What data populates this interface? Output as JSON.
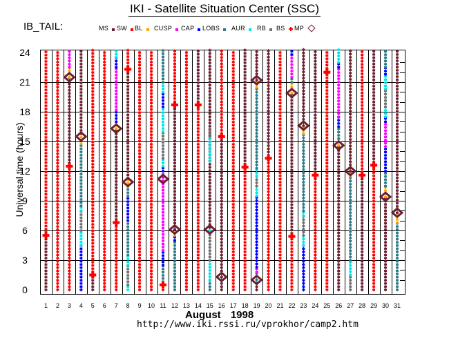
{
  "header": {
    "title": "IKI - Satellite Situation Center (SSC)",
    "satellite": "IB_TAIL:"
  },
  "footer": {
    "month_label": "August   1998",
    "url": "http://www.iki.rssi.ru/vprokhor/camp2.htm"
  },
  "chart_data": {
    "type": "scatter",
    "title": "IKI - Satellite Situation Center (SSC)",
    "satellite": "IB_TAIL",
    "xlabel": "August 1998",
    "ylabel": "Universal time (hours)",
    "x_categories": [
      "1",
      "2",
      "3",
      "4",
      "5",
      "6",
      "7",
      "8",
      "9",
      "10",
      "11",
      "12",
      "13",
      "14",
      "15",
      "16",
      "17",
      "18",
      "19",
      "20",
      "21",
      "22",
      "23",
      "24",
      "25",
      "26",
      "27",
      "28",
      "29",
      "30",
      "31"
    ],
    "yticks": [
      0,
      3,
      6,
      9,
      12,
      15,
      18,
      21,
      24
    ],
    "ylim": [
      0,
      24.5
    ],
    "grid": true,
    "legend": [
      {
        "key": "MS",
        "label": "MS",
        "color": "#6b2030",
        "marker": "dot"
      },
      {
        "key": "SW",
        "label": "SW",
        "color": "#ff0000",
        "marker": "dot"
      },
      {
        "key": "BL",
        "label": "BL",
        "color": "#ffa500",
        "marker": "dot"
      },
      {
        "key": "CUSP",
        "label": "CUSP",
        "color": "#ff00ff",
        "marker": "dot"
      },
      {
        "key": "CAP",
        "label": "CAP",
        "color": "#0000ff",
        "marker": "dot"
      },
      {
        "key": "LOBS",
        "label": "LOBS",
        "color": "#2e7b86",
        "marker": "dot"
      },
      {
        "key": "AUR",
        "label": "AUR",
        "color": "#00e5e5",
        "marker": "dot"
      },
      {
        "key": "RB",
        "label": "RB",
        "color": "#707070",
        "marker": "dot"
      },
      {
        "key": "BS",
        "label": "BS",
        "color": "#ff0000",
        "marker": "cross"
      },
      {
        "key": "MP",
        "label": "MP",
        "color": "#6b2030",
        "marker": "diamond"
      }
    ],
    "legend_order_note": "legend pairs labels with the swatch to their right: MS, SW, BL, CUSP, CAP, LOBS, AUR, RB, BS, MP",
    "days": [
      {
        "day": 1,
        "segments": [
          [
            "MS",
            0,
            5.5
          ],
          [
            "SW",
            5.5,
            24.3
          ]
        ],
        "bs": [
          5.5
        ],
        "mp": []
      },
      {
        "day": 2,
        "segments": [
          [
            "SW",
            0,
            24.3
          ]
        ],
        "bs": [],
        "mp": []
      },
      {
        "day": 3,
        "segments": [
          [
            "SW",
            0,
            12.5
          ],
          [
            "MS",
            12.5,
            21.5
          ],
          [
            "BL",
            21.5,
            22.5
          ],
          [
            "CUSP",
            22.5,
            24.3
          ]
        ],
        "bs": [
          12.5
        ],
        "mp": [
          21.5
        ]
      },
      {
        "day": 4,
        "segments": [
          [
            "CUSP",
            0,
            0.5
          ],
          [
            "CAP",
            0,
            4.5
          ],
          [
            "AUR",
            4.5,
            6.0
          ],
          [
            "RB",
            6.0,
            8.0
          ],
          [
            "AUR",
            8.0,
            8.5
          ],
          [
            "LOBS",
            8.5,
            14.8
          ],
          [
            "BL",
            14.8,
            15.8
          ],
          [
            "MS",
            15.8,
            24.3
          ]
        ],
        "bs": [],
        "mp": [
          15.5
        ]
      },
      {
        "day": 5,
        "segments": [
          [
            "MS",
            0,
            1.5
          ],
          [
            "SW",
            1.5,
            24.3
          ]
        ],
        "bs": [
          1.5
        ],
        "mp": []
      },
      {
        "day": 6,
        "segments": [
          [
            "SW",
            0,
            24.3
          ]
        ],
        "bs": [],
        "mp": []
      },
      {
        "day": 7,
        "segments": [
          [
            "SW",
            0,
            6.8
          ],
          [
            "MS",
            6.8,
            16.3
          ],
          [
            "BL",
            16.3,
            17.0
          ],
          [
            "CAP",
            17.0,
            18.2
          ],
          [
            "CUSP",
            18.2,
            22.5
          ],
          [
            "CAP",
            22.5,
            23.5
          ],
          [
            "AUR",
            23.5,
            24.3
          ]
        ],
        "bs": [
          6.8
        ],
        "mp": [
          16.3
        ]
      },
      {
        "day": 8,
        "segments": [
          [
            "AUR",
            0,
            0.5
          ],
          [
            "RB",
            0.5,
            2.5
          ],
          [
            "AUR",
            2.5,
            3.5
          ],
          [
            "LOBS",
            3.5,
            7.0
          ],
          [
            "CAP",
            7.0,
            9.5
          ],
          [
            "LOBS",
            9.5,
            10.5
          ],
          [
            "BL",
            10.5,
            11.3
          ],
          [
            "MS",
            11.3,
            22.3
          ],
          [
            "SW",
            22.3,
            24.3
          ]
        ],
        "bs": [
          22.3
        ],
        "mp": [
          10.9
        ]
      },
      {
        "day": 9,
        "segments": [
          [
            "SW",
            0,
            24.3
          ]
        ],
        "bs": [],
        "mp": []
      },
      {
        "day": 10,
        "segments": [
          [
            "SW",
            0,
            24.3
          ]
        ],
        "bs": [],
        "mp": []
      },
      {
        "day": 11,
        "segments": [
          [
            "SW",
            0,
            0.5
          ],
          [
            "LOBS",
            0.5,
            2.5
          ],
          [
            "CAP",
            2.5,
            4.0
          ],
          [
            "CUSP",
            4.0,
            12.0
          ],
          [
            "CAP",
            12.0,
            12.5
          ],
          [
            "AUR",
            12.5,
            13.3
          ],
          [
            "RB",
            13.3,
            16.0
          ],
          [
            "AUR",
            16.0,
            18.5
          ],
          [
            "CAP",
            18.5,
            20.0
          ],
          [
            "AUR",
            20.0,
            21.0
          ],
          [
            "LOBS",
            21.0,
            24.3
          ]
        ],
        "bs": [
          0.5
        ],
        "mp": [
          11.2
        ]
      },
      {
        "day": 12,
        "segments": [
          [
            "LOBS",
            0,
            5.0
          ],
          [
            "CAP",
            5.0,
            5.5
          ],
          [
            "BL",
            5.5,
            6.1
          ],
          [
            "MS",
            6.1,
            18.7
          ],
          [
            "SW",
            18.7,
            24.3
          ]
        ],
        "bs": [
          18.7
        ],
        "mp": [
          6.1
        ]
      },
      {
        "day": 13,
        "segments": [
          [
            "SW",
            0,
            24.3
          ]
        ],
        "bs": [],
        "mp": []
      },
      {
        "day": 14,
        "segments": [
          [
            "SW",
            0,
            18.7
          ],
          [
            "MS",
            18.7,
            24.3
          ]
        ],
        "bs": [
          18.7
        ],
        "mp": []
      },
      {
        "day": 15,
        "segments": [
          [
            "LOBS",
            0,
            1.0
          ],
          [
            "AUR",
            1.0,
            3.0
          ],
          [
            "RB",
            3.0,
            6.0
          ],
          [
            "AUR",
            6.0,
            6.3
          ],
          [
            "MS",
            6.3,
            24.3
          ],
          [
            "AUR",
            13.0,
            15.5
          ],
          [
            "RB",
            15.5,
            16.3
          ]
        ],
        "bs": [],
        "mp": [
          6.1
        ]
      },
      {
        "day": 16,
        "segments": [
          [
            "MS",
            0,
            15.5
          ],
          [
            "SW",
            15.5,
            24.3
          ]
        ],
        "bs": [
          15.5
        ],
        "mp": [
          1.3
        ]
      },
      {
        "day": 17,
        "segments": [
          [
            "SW",
            0,
            24.3
          ]
        ],
        "bs": [],
        "mp": []
      },
      {
        "day": 18,
        "segments": [
          [
            "SW",
            0,
            12.4
          ],
          [
            "MS",
            12.4,
            24.3
          ]
        ],
        "bs": [
          12.4
        ],
        "mp": []
      },
      {
        "day": 19,
        "segments": [
          [
            "MS",
            0,
            0.7
          ],
          [
            "LOBS",
            0.7,
            1.8
          ],
          [
            "CUSP",
            1.8,
            2.3
          ],
          [
            "CAP",
            2.3,
            9.5
          ],
          [
            "AUR",
            9.5,
            10.5
          ],
          [
            "RB",
            10.5,
            11.5
          ],
          [
            "AUR",
            11.5,
            12.3
          ],
          [
            "LOBS",
            12.3,
            20.5
          ],
          [
            "BL",
            20.5,
            21.2
          ],
          [
            "MS",
            21.2,
            24.3
          ]
        ],
        "bs": [],
        "mp": [
          1.0,
          21.2
        ]
      },
      {
        "day": 20,
        "segments": [
          [
            "SW",
            0,
            13.3
          ],
          [
            "MS",
            13.3,
            24.3
          ]
        ],
        "bs": [
          13.3
        ],
        "mp": []
      },
      {
        "day": 21,
        "segments": [
          [
            "SW",
            0,
            24.3
          ]
        ],
        "bs": [],
        "mp": []
      },
      {
        "day": 22,
        "segments": [
          [
            "SW",
            0,
            5.4
          ],
          [
            "MS",
            5.4,
            19.9
          ],
          [
            "BL",
            19.9,
            21.0
          ],
          [
            "LOBS",
            21.0,
            21.5
          ],
          [
            "CUSP",
            21.5,
            23.8
          ],
          [
            "CAP",
            23.8,
            24.3
          ]
        ],
        "bs": [
          5.4
        ],
        "mp": [
          19.9
        ]
      },
      {
        "day": 23,
        "segments": [
          [
            "CAP",
            0,
            4.5
          ],
          [
            "AUR",
            4.5,
            5.5
          ],
          [
            "RB",
            5.5,
            7.5
          ],
          [
            "AUR",
            7.5,
            8.0
          ],
          [
            "LOBS",
            8.0,
            15.8
          ],
          [
            "BL",
            15.8,
            16.6
          ],
          [
            "MS",
            16.6,
            24.3
          ]
        ],
        "bs": [],
        "mp": [
          16.6
        ]
      },
      {
        "day": 24,
        "segments": [
          [
            "SW",
            0,
            11.6
          ],
          [
            "MS",
            11.6,
            24.3
          ]
        ],
        "bs": [
          11.6
        ],
        "mp": []
      },
      {
        "day": 25,
        "segments": [
          [
            "SW",
            0,
            24.3
          ]
        ],
        "bs": [
          22.0
        ],
        "mp": []
      },
      {
        "day": 26,
        "segments": [
          [
            "MS",
            0,
            14.6
          ],
          [
            "BL",
            14.6,
            15.3
          ],
          [
            "LOBS",
            15.3,
            16.5
          ],
          [
            "CAP",
            16.5,
            17.5
          ],
          [
            "CUSP",
            17.5,
            22.5
          ],
          [
            "CAP",
            22.5,
            23.0
          ],
          [
            "AUR",
            23.0,
            24.3
          ]
        ],
        "bs": [],
        "mp": [
          14.6
        ]
      },
      {
        "day": 27,
        "segments": [
          [
            "RB",
            0,
            1.5
          ],
          [
            "AUR",
            1.5,
            3.0
          ],
          [
            "LOBS",
            3.0,
            11.5
          ],
          [
            "BL",
            11.5,
            12.0
          ],
          [
            "MS",
            12.0,
            24.3
          ]
        ],
        "bs": [],
        "mp": [
          12.0
        ]
      },
      {
        "day": 28,
        "segments": [
          [
            "MS",
            0,
            11.6
          ],
          [
            "SW",
            11.6,
            24.3
          ]
        ],
        "bs": [
          11.6
        ],
        "mp": []
      },
      {
        "day": 29,
        "segments": [
          [
            "SW",
            0,
            12.6
          ],
          [
            "MS",
            12.6,
            24.3
          ]
        ],
        "bs": [
          12.6
        ],
        "mp": []
      },
      {
        "day": 30,
        "segments": [
          [
            "MS",
            0,
            9.4
          ],
          [
            "BL",
            9.4,
            10.5
          ],
          [
            "LOBS",
            10.5,
            12.0
          ],
          [
            "CAP",
            12.0,
            14.5
          ],
          [
            "CUSP",
            14.5,
            17.0
          ],
          [
            "CAP",
            17.0,
            17.5
          ],
          [
            "AUR",
            17.5,
            18.5
          ],
          [
            "RB",
            18.5,
            20.3
          ],
          [
            "AUR",
            20.3,
            21.8
          ],
          [
            "CAP",
            21.8,
            22.5
          ],
          [
            "LOBS",
            22.5,
            24.3
          ]
        ],
        "bs": [],
        "mp": [
          9.4
        ]
      },
      {
        "day": 31,
        "segments": [
          [
            "LOBS",
            0,
            6.8
          ],
          [
            "BL",
            6.8,
            7.8
          ],
          [
            "MS",
            7.8,
            24.3
          ]
        ],
        "bs": [],
        "mp": [
          7.8
        ]
      }
    ]
  }
}
